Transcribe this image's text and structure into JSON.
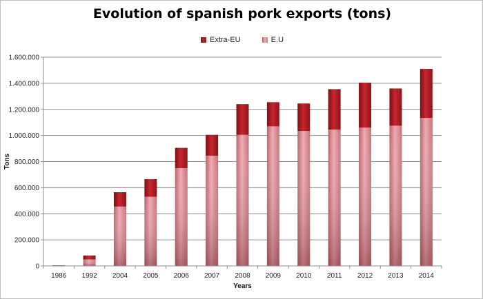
{
  "chart_data": {
    "type": "bar",
    "stacked": true,
    "title": "Evolution of spanish pork exports (tons)",
    "xlabel": "Years",
    "ylabel": "Tons",
    "ylim": [
      0,
      1600000
    ],
    "yticks": [
      "0",
      "200.000",
      "400.000",
      "600.000",
      "800.000",
      "1.000.000",
      "1.200.000",
      "1.400.000",
      "1.600.000"
    ],
    "ytick_values": [
      0,
      200000,
      400000,
      600000,
      800000,
      1000000,
      1200000,
      1400000,
      1600000
    ],
    "grid": true,
    "legend_position": "top",
    "categories": [
      "1986",
      "1992",
      "2004",
      "2005",
      "2006",
      "2007",
      "2008",
      "2009",
      "2010",
      "2011",
      "2012",
      "2013",
      "2014"
    ],
    "series": [
      {
        "name": "E.U",
        "color": "#e8969c",
        "values": [
          3000,
          50000,
          455000,
          530000,
          750000,
          845000,
          1005000,
          1070000,
          1035000,
          1045000,
          1060000,
          1075000,
          1135000
        ]
      },
      {
        "name": "Extra-EU",
        "color": "#b5202a",
        "values": [
          2000,
          30000,
          110000,
          135000,
          155000,
          160000,
          235000,
          185000,
          210000,
          310000,
          345000,
          285000,
          375000
        ]
      }
    ]
  }
}
